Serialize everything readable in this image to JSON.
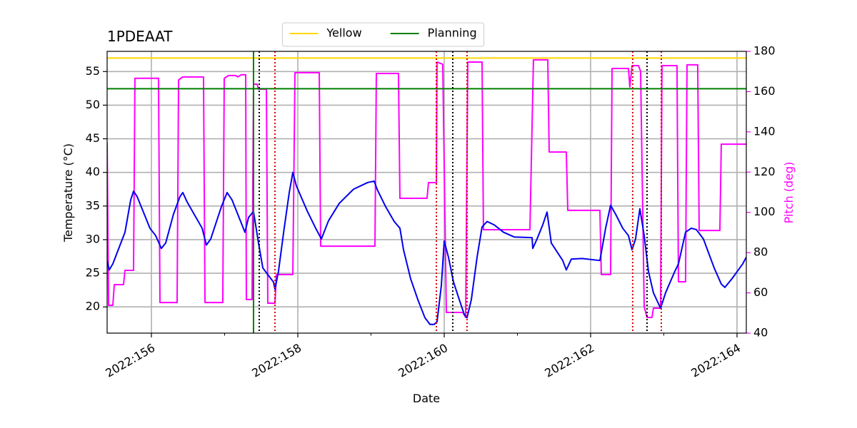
{
  "chart_data": {
    "type": "line",
    "title": "1PDEAAT",
    "xlabel": "Date",
    "ylabel": "Temperature (°C)",
    "y2label": "Pitch (deg)",
    "xlim": [
      155.395,
      164.127
    ],
    "xticks": [
      {
        "value": 156,
        "label": "2022:156"
      },
      {
        "value": 158,
        "label": "2022:158"
      },
      {
        "value": 160,
        "label": "2022:160"
      },
      {
        "value": 162,
        "label": "2022:162"
      },
      {
        "value": 164,
        "label": "2022:164"
      }
    ],
    "xminorticks": [
      157,
      159,
      161,
      163
    ],
    "ylim": [
      16.1,
      58
    ],
    "yticks": [
      20,
      25,
      30,
      35,
      40,
      45,
      50,
      55
    ],
    "y2lim": [
      40,
      180
    ],
    "y2ticks": [
      40,
      60,
      80,
      100,
      120,
      140,
      160,
      180
    ],
    "grid": true,
    "legend": "upper center",
    "hlines": [
      {
        "name": "Yellow",
        "value": 57,
        "color": "#ffd700"
      },
      {
        "name": "Planning",
        "value": 52.45,
        "color": "#008000"
      }
    ],
    "vlines": [
      {
        "x": 157.395,
        "color": "#008000",
        "style": "solid"
      },
      {
        "x": 157.473,
        "color": "#000000",
        "style": "dotted"
      },
      {
        "x": 160.117,
        "color": "#000000",
        "style": "dotted"
      },
      {
        "x": 162.771,
        "color": "#000000",
        "style": "dotted"
      },
      {
        "x": 157.688,
        "color": "#dd0000",
        "style": "dotted"
      },
      {
        "x": 159.893,
        "color": "#dd0000",
        "style": "dotted"
      },
      {
        "x": 160.312,
        "color": "#dd0000",
        "style": "dotted"
      },
      {
        "x": 162.575,
        "color": "#dd0000",
        "style": "dotted"
      },
      {
        "x": 162.966,
        "color": "#dd0000",
        "style": "dotted"
      }
    ],
    "series": [
      {
        "color": "#0000ee",
        "x": [
          155.395,
          155.424,
          155.473,
          155.639,
          155.717,
          155.756,
          155.805,
          155.98,
          156.058,
          156.136,
          156.195,
          156.302,
          156.39,
          156.429,
          156.488,
          156.693,
          156.751,
          156.81,
          156.956,
          157.034,
          157.102,
          157.278,
          157.327,
          157.395,
          157.463,
          157.522,
          157.59,
          157.668,
          157.688,
          157.736,
          157.814,
          157.883,
          157.932,
          157.98,
          158.127,
          158.244,
          158.322,
          158.419,
          158.566,
          158.761,
          158.956,
          159.044,
          159.083,
          159.2,
          159.317,
          159.395,
          159.444,
          159.541,
          159.639,
          159.736,
          159.805,
          159.863,
          159.902,
          159.961,
          160.0,
          160.058,
          160.127,
          160.205,
          160.273,
          160.312,
          160.371,
          160.449,
          160.517,
          160.585,
          160.683,
          160.81,
          160.956,
          161.2,
          161.21,
          161.268,
          161.346,
          161.405,
          161.463,
          161.619,
          161.668,
          161.736,
          161.883,
          162.127,
          162.205,
          162.273,
          162.341,
          162.439,
          162.517,
          162.566,
          162.614,
          162.673,
          162.732,
          162.79,
          162.858,
          162.956,
          163.024,
          163.151,
          163.2,
          163.297,
          163.375,
          163.444,
          163.541,
          163.688,
          163.785,
          163.834,
          163.932,
          164.078,
          164.127
        ],
        "values": [
          26.9,
          25.5,
          26.4,
          31.1,
          35.9,
          37.2,
          36.4,
          31.7,
          30.6,
          28.7,
          29.5,
          33.8,
          36.4,
          37.0,
          35.6,
          31.7,
          29.2,
          30.1,
          34.9,
          37.0,
          35.9,
          31.1,
          33.3,
          34.2,
          29.5,
          25.8,
          24.8,
          23.7,
          22.6,
          25.3,
          31.7,
          37.0,
          40.0,
          38.0,
          34.3,
          31.7,
          30.1,
          32.8,
          35.4,
          37.5,
          38.5,
          38.7,
          37.5,
          34.9,
          32.7,
          31.7,
          28.5,
          24.2,
          21.1,
          18.4,
          17.4,
          17.4,
          17.8,
          23.2,
          29.8,
          27.4,
          23.7,
          21.1,
          18.9,
          18.4,
          21.1,
          27.4,
          31.9,
          32.7,
          32.2,
          31.1,
          30.4,
          30.3,
          28.7,
          30.1,
          32.2,
          34.1,
          29.5,
          26.9,
          25.5,
          27.1,
          27.2,
          26.9,
          31.7,
          35.1,
          33.8,
          31.7,
          30.6,
          28.5,
          30.1,
          34.6,
          30.6,
          25.3,
          22.1,
          19.8,
          22.1,
          25.3,
          26.4,
          31.1,
          31.7,
          31.5,
          30.1,
          25.8,
          23.4,
          22.9,
          24.2,
          26.4,
          27.4
        ]
      },
      {
        "color": "#ff00ff",
        "axis": "y2",
        "x": [
          155.395,
          155.415,
          155.473,
          155.493,
          155.619,
          155.639,
          155.756,
          155.775,
          156.097,
          156.117,
          156.351,
          156.371,
          156.429,
          156.712,
          156.732,
          156.975,
          156.995,
          157.054,
          157.151,
          157.18,
          157.229,
          157.288,
          157.297,
          157.375,
          157.395,
          157.444,
          157.463,
          157.571,
          157.59,
          157.688,
          157.707,
          157.932,
          157.961,
          158.293,
          158.312,
          159.054,
          159.073,
          159.375,
          159.395,
          159.766,
          159.785,
          159.893,
          159.902,
          159.98,
          160.029,
          160.254,
          160.293,
          160.322,
          160.517,
          160.536,
          161.171,
          161.219,
          161.415,
          161.434,
          161.668,
          161.688,
          162.127,
          162.146,
          162.273,
          162.293,
          162.517,
          162.536,
          162.566,
          162.654,
          162.683,
          162.732,
          162.771,
          162.839,
          162.858,
          162.956,
          162.975,
          163.18,
          163.2,
          163.297,
          163.317,
          163.463,
          163.483,
          163.766,
          163.785,
          164.127
        ],
        "values": [
          134.6,
          53.8,
          53.8,
          64.1,
          64.1,
          71.2,
          71.2,
          166.6,
          166.6,
          55.2,
          55.2,
          165.8,
          167.3,
          167.3,
          55.2,
          55.2,
          166.6,
          168.0,
          168.0,
          167.3,
          168.4,
          168.4,
          56.7,
          56.7,
          163.7,
          163.7,
          161.2,
          161.2,
          54.9,
          54.9,
          69.1,
          69.1,
          169.4,
          169.4,
          83.2,
          83.2,
          169.0,
          169.0,
          107.0,
          107.0,
          114.8,
          114.8,
          174.7,
          173.6,
          50.3,
          50.3,
          47.8,
          174.7,
          174.7,
          91.4,
          91.4,
          175.8,
          175.8,
          130.0,
          130.0,
          101.0,
          101.0,
          69.1,
          69.1,
          171.5,
          171.5,
          162.3,
          172.9,
          172.9,
          170.1,
          53.1,
          47.8,
          47.8,
          52.4,
          52.4,
          172.9,
          172.9,
          65.5,
          65.5,
          173.3,
          173.3,
          91.0,
          91.0,
          133.9,
          133.9
        ]
      }
    ]
  }
}
